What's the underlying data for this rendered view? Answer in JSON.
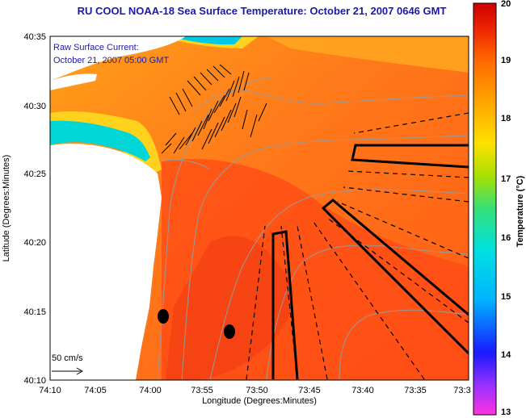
{
  "title": "RU COOL  NOAA-18  Sea Surface Temperature:  October 21, 2007 0646 GMT",
  "current_label_line1": "Raw Surface Current:",
  "current_label_line2": "October 21, 2007 05:00 GMT",
  "scale_label": "50 cm/s",
  "x_axis_label": "Longitude (Degrees:Minutes)",
  "y_axis_label": "Latitude (Degrees:Minutes)",
  "colorbar_label": "Temperature (°C)",
  "x_ticks": [
    "74:10",
    "74:05",
    "74:00",
    "73:55",
    "73:50",
    "73:45",
    "73:40",
    "73:35",
    "73:3"
  ],
  "y_ticks": [
    "40:35",
    "40:30",
    "40:25",
    "40:20",
    "40:15",
    "40:10"
  ],
  "colorbar_ticks": [
    "20",
    "19",
    "18",
    "17",
    "16",
    "15",
    "14",
    "13"
  ],
  "colors": {
    "title": "#1a1aa8",
    "land": "#ffffff",
    "water_warm": "#ff5a1a",
    "water_mid": "#ff8c1e",
    "contours": "#9a9a9a"
  }
}
